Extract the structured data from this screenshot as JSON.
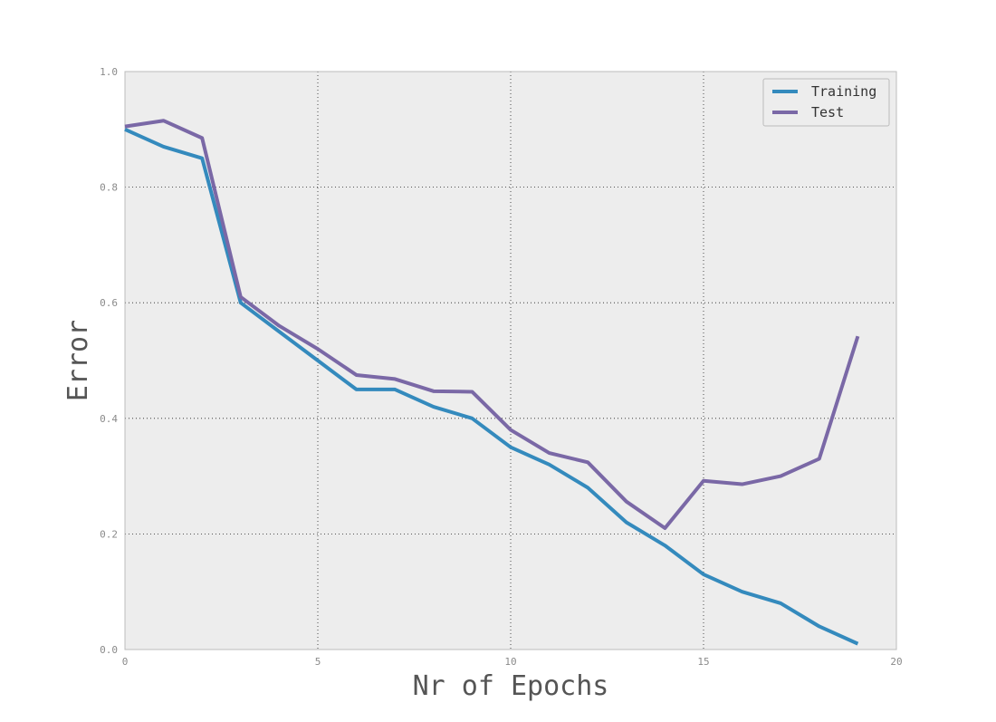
{
  "chart_data": {
    "type": "line",
    "title": "",
    "xlabel": "Nr of Epochs",
    "ylabel": "Error",
    "xlim": [
      0,
      20
    ],
    "ylim": [
      0.0,
      1.0
    ],
    "xticks": [
      0,
      5,
      10,
      15,
      20
    ],
    "yticks": [
      0.0,
      0.2,
      0.4,
      0.6,
      0.8,
      1.0
    ],
    "xtick_labels": [
      "0",
      "5",
      "10",
      "15",
      "20"
    ],
    "ytick_labels": [
      "0.0",
      "0.2",
      "0.4",
      "0.6",
      "0.8",
      "1.0"
    ],
    "grid": true,
    "legend_position": "top-right",
    "x": [
      0,
      1,
      2,
      3,
      4,
      5,
      6,
      7,
      8,
      9,
      10,
      11,
      12,
      13,
      14,
      15,
      16,
      17,
      18,
      19
    ],
    "series": [
      {
        "name": "Training",
        "color": "#348abd",
        "values": [
          0.9,
          0.87,
          0.85,
          0.6,
          0.55,
          0.5,
          0.45,
          0.45,
          0.42,
          0.4,
          0.35,
          0.32,
          0.28,
          0.22,
          0.18,
          0.13,
          0.1,
          0.08,
          0.04,
          0.01
        ]
      },
      {
        "name": "Test",
        "color": "#7a68a6",
        "values": [
          0.905,
          0.915,
          0.885,
          0.61,
          0.56,
          0.52,
          0.475,
          0.468,
          0.447,
          0.446,
          0.38,
          0.34,
          0.324,
          0.256,
          0.21,
          0.292,
          0.286,
          0.3,
          0.33,
          0.542
        ]
      }
    ]
  }
}
